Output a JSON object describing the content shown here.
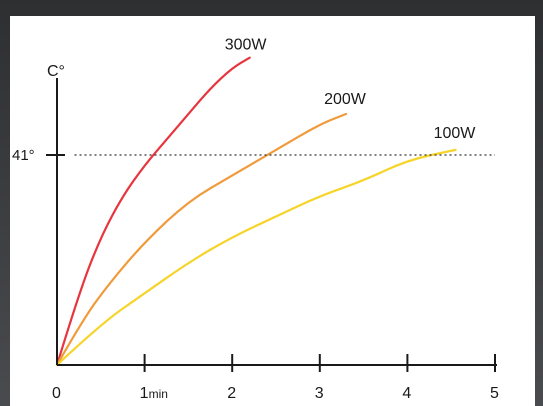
{
  "chart_data": {
    "type": "line",
    "ylabel": "C°",
    "xlabel": "",
    "x_ticks": [
      {
        "value": 0,
        "label": "0",
        "unit": ""
      },
      {
        "value": 1,
        "label": "1",
        "unit": "min"
      },
      {
        "value": 2,
        "label": "2",
        "unit": ""
      },
      {
        "value": 3,
        "label": "3",
        "unit": ""
      },
      {
        "value": 4,
        "label": "4",
        "unit": ""
      },
      {
        "value": 5,
        "label": "5",
        "unit": ""
      }
    ],
    "xlim": [
      0,
      5
    ],
    "ylim": [
      0,
      63
    ],
    "reference_line": {
      "y": 41,
      "label": "41°",
      "style": "dotted",
      "color": "#333333"
    },
    "series": [
      {
        "name": "300W",
        "color": "#e8343c",
        "points": [
          [
            0,
            0
          ],
          [
            0.25,
            14
          ],
          [
            0.5,
            25
          ],
          [
            0.75,
            33
          ],
          [
            1.0,
            39
          ],
          [
            1.25,
            44
          ],
          [
            1.5,
            49
          ],
          [
            1.75,
            54
          ],
          [
            2.0,
            58
          ],
          [
            2.2,
            60
          ]
        ]
      },
      {
        "name": "200W",
        "color": "#f09a3a",
        "points": [
          [
            0,
            0
          ],
          [
            0.3,
            9
          ],
          [
            0.6,
            16
          ],
          [
            1.0,
            24
          ],
          [
            1.5,
            32
          ],
          [
            2.0,
            37
          ],
          [
            2.5,
            42
          ],
          [
            3.0,
            47
          ],
          [
            3.3,
            49
          ]
        ]
      },
      {
        "name": "100W",
        "color": "#f6d42a",
        "points": [
          [
            0,
            0
          ],
          [
            0.5,
            8
          ],
          [
            1.0,
            14
          ],
          [
            1.5,
            20
          ],
          [
            2.0,
            25
          ],
          [
            2.5,
            29
          ],
          [
            3.0,
            33
          ],
          [
            3.5,
            36
          ],
          [
            4.0,
            40
          ],
          [
            4.55,
            42
          ]
        ]
      }
    ],
    "grid": false,
    "legend": "inline-labels-at-line-ends"
  }
}
